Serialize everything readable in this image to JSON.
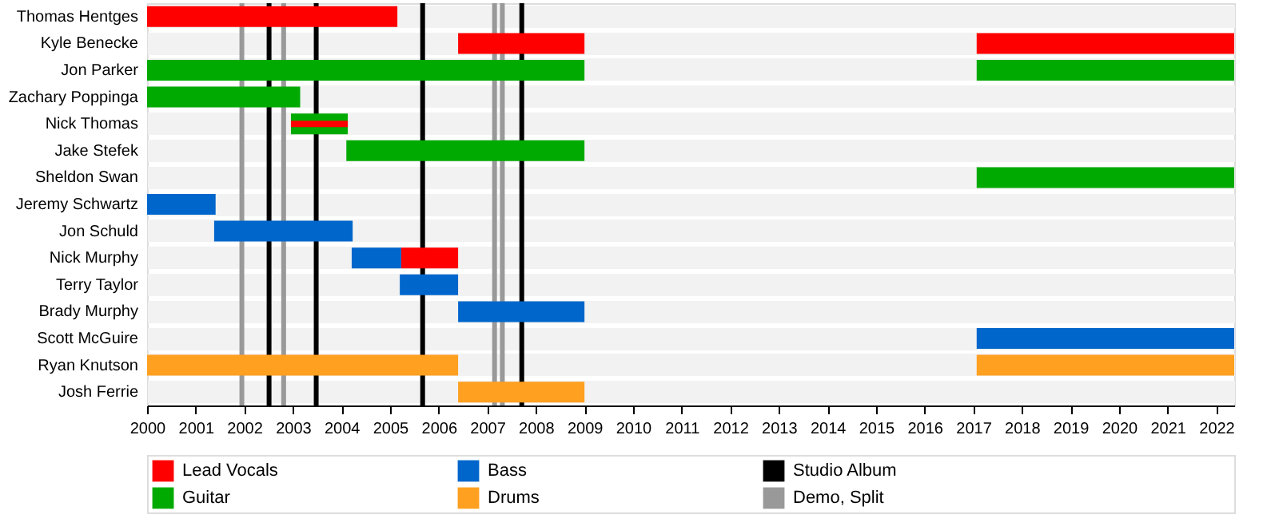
{
  "chart_data": {
    "type": "bar",
    "orientation": "horizontal",
    "categories": [
      "Thomas Hentges",
      "Kyle Benecke",
      "Jon Parker",
      "Zachary Poppinga",
      "Nick Thomas",
      "Jake Stefek",
      "Sheldon Swan",
      "Jeremy Schwartz",
      "Jon Schuld",
      "Nick Murphy",
      "Terry Taylor",
      "Brady Murphy",
      "Scott McGuire",
      "Ryan Knutson",
      "Josh Ferrie"
    ],
    "series": [
      {
        "name": "Lead Vocals",
        "color": "#ff0000",
        "base": [
          2000,
          2006.4,
          null,
          null,
          2002.96,
          null,
          null,
          null,
          null,
          2005.23,
          null,
          null,
          null,
          null,
          null
        ],
        "values": [
          5.15,
          2.6,
          null,
          null,
          1.17,
          null,
          null,
          null,
          null,
          1.17,
          null,
          null,
          null,
          null,
          null
        ]
      },
      {
        "name": "Guitar",
        "color": "#00aa00",
        "base": [
          null,
          null,
          2000,
          2000,
          2002.96,
          2004.1,
          2017.07,
          null,
          null,
          null,
          null,
          null,
          null,
          null,
          null
        ],
        "values": [
          null,
          null,
          9,
          3.15,
          1.17,
          4.9,
          5.3,
          null,
          null,
          null,
          null,
          null,
          null,
          null,
          null
        ]
      },
      {
        "name": "Bass",
        "color": "#0066cc",
        "base": [
          null,
          null,
          null,
          null,
          null,
          null,
          null,
          2000,
          2001.38,
          2004.21,
          2005.2,
          2006.4,
          2017.07,
          null,
          null
        ],
        "values": [
          null,
          null,
          null,
          null,
          null,
          null,
          null,
          1.41,
          2.85,
          1.02,
          1.2,
          2.6,
          5.3,
          null,
          null
        ]
      },
      {
        "name": "Drums",
        "color": "#ffa020",
        "base": [
          null,
          null,
          null,
          null,
          null,
          null,
          null,
          null,
          null,
          null,
          null,
          null,
          null,
          2000,
          2006.4
        ],
        "values": [
          null,
          null,
          null,
          null,
          null,
          null,
          null,
          null,
          null,
          null,
          null,
          null,
          null,
          6.4,
          2.6
        ]
      },
      {
        "color": "#ff0000",
        "base": [
          null,
          2017.07,
          null,
          null,
          null,
          null,
          null,
          null,
          null,
          null,
          null,
          null,
          null,
          null,
          null
        ],
        "values": [
          null,
          5.3,
          null,
          null,
          null,
          null,
          null,
          null,
          null,
          null,
          null,
          null,
          null,
          null,
          null
        ]
      },
      {
        "color": "#00aa00",
        "base": [
          null,
          null,
          2017.07,
          null,
          null,
          null,
          null,
          null,
          null,
          null,
          null,
          null,
          null,
          null,
          null
        ],
        "values": [
          null,
          null,
          5.3,
          null,
          null,
          null,
          null,
          null,
          null,
          null,
          null,
          null,
          null,
          null,
          null
        ]
      },
      {
        "color": "#ffa020",
        "base": [
          null,
          null,
          null,
          null,
          null,
          null,
          null,
          null,
          null,
          null,
          null,
          null,
          null,
          2017.07,
          null
        ],
        "values": [
          null,
          null,
          null,
          null,
          null,
          null,
          null,
          null,
          null,
          null,
          null,
          null,
          null,
          5.3,
          null
        ]
      }
    ],
    "ref_lines": [
      {
        "axis": "x",
        "value": 2002.51,
        "color": "#000000",
        "label": "Studio Album"
      },
      {
        "axis": "x",
        "value": 2003.48,
        "color": "#000000"
      },
      {
        "axis": "x",
        "value": 2005.67,
        "color": "#000000"
      },
      {
        "axis": "x",
        "value": 2007.71,
        "color": "#000000"
      },
      {
        "axis": "x",
        "value": 2001.95,
        "color": "#999999",
        "label": "Demo, Split"
      },
      {
        "axis": "x",
        "value": 2002.81,
        "color": "#999999"
      },
      {
        "axis": "x",
        "value": 2007.15,
        "color": "#999999"
      },
      {
        "axis": "x",
        "value": 2007.31,
        "color": "#999999"
      }
    ],
    "xlim": [
      2000,
      2022.37
    ],
    "xticks": [
      2000,
      2001,
      2002,
      2003,
      2004,
      2005,
      2006,
      2007,
      2008,
      2009,
      2010,
      2011,
      2012,
      2013,
      2014,
      2015,
      2016,
      2017,
      2018,
      2019,
      2020,
      2021,
      2022
    ],
    "grid": "y",
    "legend": "bottom"
  }
}
